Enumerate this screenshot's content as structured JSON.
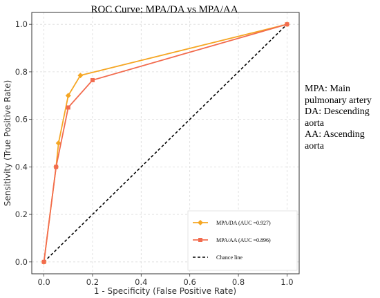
{
  "chart_data": {
    "type": "line",
    "title": "ROC Curve: MPA/DA vs MPA/AA",
    "xlabel": "1 - Specificity (False Positive Rate)",
    "ylabel": "Sensitivity (True Positive Rate)",
    "xlim": [
      -0.05,
      1.05
    ],
    "ylim": [
      -0.05,
      1.05
    ],
    "xticks": [
      "0.0",
      "0.2",
      "0.4",
      "0.6",
      "0.8",
      "1.0"
    ],
    "yticks": [
      "0.0",
      "0.2",
      "0.4",
      "0.6",
      "0.8",
      "1.0"
    ],
    "grid": true,
    "legend_position": "bottom-right",
    "series": [
      {
        "name": "MPA/DA (AUC =0.927)",
        "color": "#F5A623",
        "marker": "diamond",
        "x": [
          0.0,
          0.05,
          0.06,
          0.1,
          0.15,
          1.0
        ],
        "y": [
          0.0,
          0.4,
          0.5,
          0.7,
          0.785,
          1.0
        ]
      },
      {
        "name": "MPA/AA (AUC =0.896)",
        "color": "#F26B4E",
        "marker": "square",
        "x": [
          0.0,
          0.05,
          0.1,
          0.2,
          1.0
        ],
        "y": [
          0.0,
          0.4,
          0.65,
          0.765,
          1.0
        ]
      },
      {
        "name": "Chance line",
        "color": "#000000",
        "style": "dashed",
        "x": [
          0.0,
          1.0
        ],
        "y": [
          0.0,
          1.0
        ]
      }
    ]
  },
  "notes": [
    "MPA: Main pulmonary artery",
    "DA: Descending aorta",
    "AA: Ascending aorta"
  ]
}
